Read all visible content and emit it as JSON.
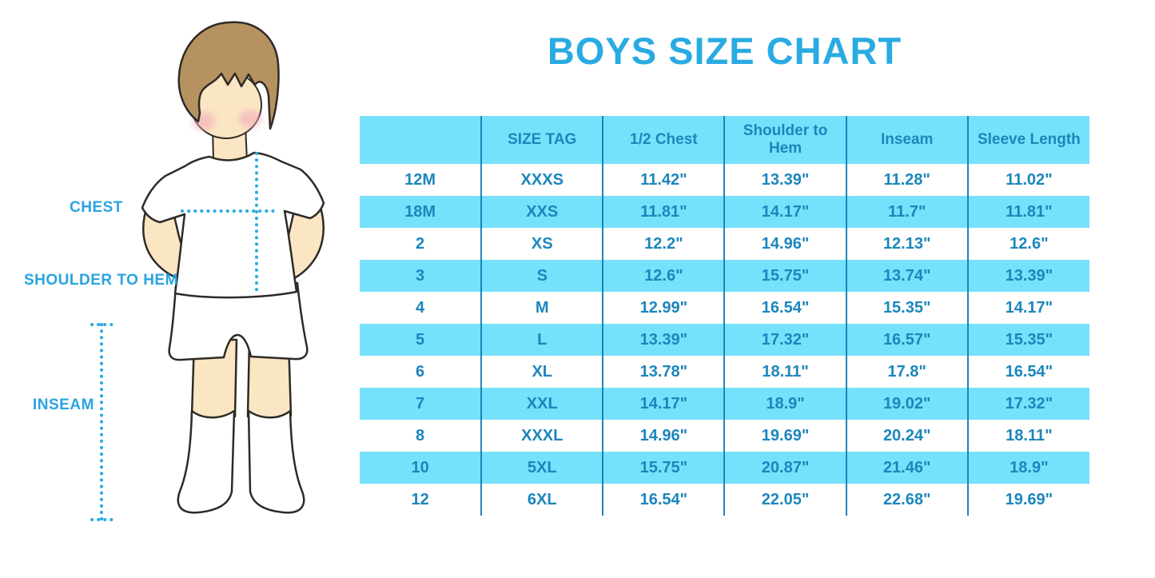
{
  "title": "BOYS SIZE CHART",
  "figure": {
    "description": "boy-illustration-with-measurement-lines",
    "labels": {
      "chest": "CHEST",
      "shoulder_to_hem": "SHOULDER TO HEM",
      "inseam": "INSEAM"
    }
  },
  "colors": {
    "accent_blue": "#29ABE2",
    "table_text_blue": "#1C86BC",
    "row_cyan": "#76E1FA",
    "divider_blue": "#1E85B8",
    "label_blue": "#29A3E0",
    "dotted_line_blue": "#29ABE2",
    "skin": "#FAE6C3",
    "hair_brown": "#B5925F",
    "outline": "#2E2A26",
    "cheek_pink": "#F2A7BC"
  },
  "chart_data": {
    "type": "table",
    "title": "BOYS SIZE CHART",
    "columns": [
      "",
      "SIZE TAG",
      "1/2 Chest",
      "Shoulder to Hem",
      "Inseam",
      "Sleeve Length"
    ],
    "rows": [
      [
        "12M",
        "XXXS",
        "11.42\"",
        "13.39\"",
        "11.28\"",
        "11.02\""
      ],
      [
        "18M",
        "XXS",
        "11.81\"",
        "14.17\"",
        "11.7\"",
        "11.81\""
      ],
      [
        "2",
        "XS",
        "12.2\"",
        "14.96\"",
        "12.13\"",
        "12.6\""
      ],
      [
        "3",
        "S",
        "12.6\"",
        "15.75\"",
        "13.74\"",
        "13.39\""
      ],
      [
        "4",
        "M",
        "12.99\"",
        "16.54\"",
        "15.35\"",
        "14.17\""
      ],
      [
        "5",
        "L",
        "13.39\"",
        "17.32\"",
        "16.57\"",
        "15.35\""
      ],
      [
        "6",
        "XL",
        "13.78\"",
        "18.11\"",
        "17.8\"",
        "16.54\""
      ],
      [
        "7",
        "XXL",
        "14.17\"",
        "18.9\"",
        "19.02\"",
        "17.32\""
      ],
      [
        "8",
        "XXXL",
        "14.96\"",
        "19.69\"",
        "20.24\"",
        "18.11\""
      ],
      [
        "10",
        "5XL",
        "15.75\"",
        "20.87\"",
        "21.46\"",
        "18.9\""
      ],
      [
        "12",
        "6XL",
        "16.54\"",
        "22.05\"",
        "22.68\"",
        "19.69\""
      ]
    ],
    "layout": {
      "header_background": "cyan",
      "row_striping": "white/cyan alternating starting white",
      "column_dividers": "vertical dark blue lines only, no horizontal borders"
    }
  }
}
